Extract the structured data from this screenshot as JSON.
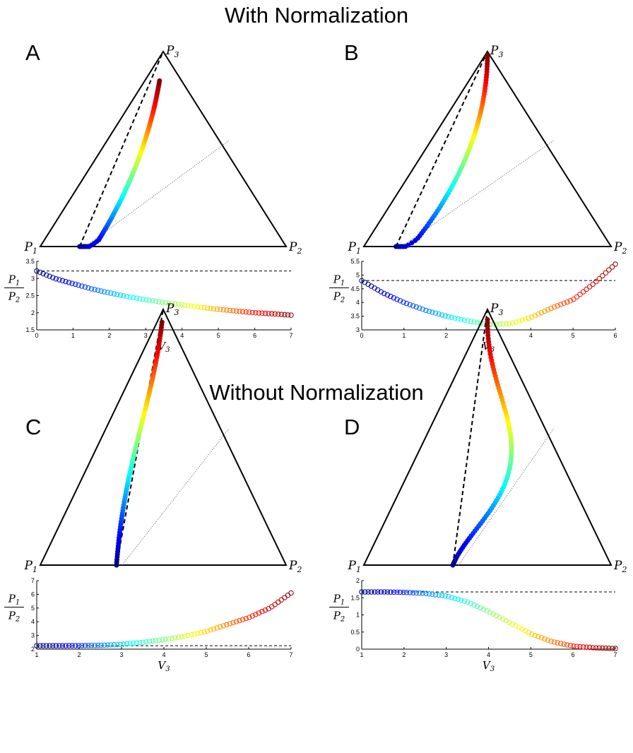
{
  "sections": {
    "top_title": "With Normalization",
    "bottom_title": "Without Normalization"
  },
  "vertex_labels": {
    "p1": "P",
    "p1_sub": "1",
    "p2": "P",
    "p2_sub": "2",
    "p3": "P",
    "p3_sub": "3"
  },
  "colors": {
    "colormap": "jet",
    "triangle": "#000000",
    "dashed": "#000000",
    "dotted": "#555555"
  },
  "chart_data": [
    {
      "panel": "A",
      "type": "scatter",
      "kind": "ternary-trajectory",
      "vertices": [
        "P1",
        "P2",
        "P3"
      ],
      "trajectory": {
        "start_bary": [
          0.84,
          0.16,
          0.0
        ],
        "end_bary": [
          0.09,
          0.06,
          0.85
        ],
        "curve_shape": "hooks along base then rises toward P3",
        "points": 90
      }
    },
    {
      "panel": "A",
      "type": "scatter",
      "ylabel": "P1/P2",
      "xlabel": "V3",
      "xlim": [
        0,
        7
      ],
      "ylim": [
        1.5,
        3.5
      ],
      "xticks": [
        "0",
        "1",
        "2",
        "3",
        "4",
        "5",
        "6",
        "7"
      ],
      "yticks": [
        "1.5",
        "2",
        "2.5",
        "3",
        "3.5"
      ],
      "reference_line_y": 3.22,
      "x": [
        0,
        0.5,
        1,
        1.5,
        2,
        2.5,
        3,
        3.5,
        4,
        4.5,
        5,
        5.5,
        6,
        6.5,
        7
      ],
      "y": [
        3.22,
        3.0,
        2.85,
        2.7,
        2.58,
        2.47,
        2.38,
        2.3,
        2.23,
        2.16,
        2.1,
        2.05,
        2.0,
        1.97,
        1.93
      ]
    },
    {
      "panel": "B",
      "type": "scatter",
      "kind": "ternary-trajectory",
      "vertices": [
        "P1",
        "P2",
        "P3"
      ],
      "trajectory": {
        "start_bary": [
          0.87,
          0.13,
          0.0
        ],
        "end_bary": [
          0.01,
          0.01,
          0.98
        ],
        "curve_shape": "hooks along base then nearly straight up to P3",
        "points": 80
      }
    },
    {
      "panel": "B",
      "type": "scatter",
      "ylabel": "P1/P2",
      "xlabel": "V3",
      "xlim": [
        0,
        6
      ],
      "ylim": [
        3,
        5.5
      ],
      "xticks": [
        "0",
        "1",
        "2",
        "3",
        "4",
        "5",
        "6"
      ],
      "yticks": [
        "3",
        "3.5",
        "4",
        "4.5",
        "5",
        "5.5"
      ],
      "reference_line_y": 4.8,
      "x": [
        0,
        0.5,
        1,
        1.5,
        2,
        2.5,
        3,
        3.5,
        4,
        4.5,
        5,
        5.5,
        6
      ],
      "y": [
        4.8,
        4.35,
        4.0,
        3.72,
        3.5,
        3.33,
        3.2,
        3.22,
        3.45,
        3.8,
        4.1,
        4.7,
        5.4
      ]
    },
    {
      "panel": "C",
      "type": "scatter",
      "kind": "ternary-trajectory",
      "vertices": [
        "P1",
        "P2",
        "P3"
      ],
      "trajectory": {
        "start_bary": [
          0.69,
          0.31,
          0.0
        ],
        "end_bary": [
          0.03,
          0.02,
          0.95
        ],
        "curve_shape": "rises steeply from base, slight bulge left of dashed chord",
        "points": 90
      }
    },
    {
      "panel": "C",
      "type": "scatter",
      "ylabel": "P1/P2",
      "xlabel": "V3",
      "xlim": [
        1,
        7
      ],
      "ylim": [
        2,
        7
      ],
      "xticks": [
        "1",
        "2",
        "3",
        "4",
        "5",
        "6",
        "7"
      ],
      "yticks": [
        "2",
        "3",
        "4",
        "5",
        "6",
        "7"
      ],
      "reference_line_y": 2.25,
      "x": [
        1,
        1.5,
        2,
        2.5,
        3,
        3.5,
        4,
        4.5,
        5,
        5.5,
        6,
        6.5,
        7
      ],
      "y": [
        2.25,
        2.25,
        2.26,
        2.28,
        2.35,
        2.5,
        2.7,
        2.95,
        3.3,
        3.8,
        4.3,
        5.0,
        6.1
      ]
    },
    {
      "panel": "D",
      "type": "scatter",
      "kind": "ternary-trajectory",
      "vertices": [
        "P1",
        "P2",
        "P3"
      ],
      "trajectory": {
        "start_bary": [
          0.64,
          0.36,
          0.0
        ],
        "end_bary": [
          0.02,
          0.02,
          0.96
        ],
        "curve_shape": "rises toward P2 side and bulges right before reaching P3",
        "points": 90
      }
    },
    {
      "panel": "D",
      "type": "scatter",
      "ylabel": "P1/P2",
      "xlabel": "V3",
      "xlim": [
        1,
        7
      ],
      "ylim": [
        0,
        2
      ],
      "xticks": [
        "1",
        "2",
        "3",
        "4",
        "5",
        "6",
        "7"
      ],
      "yticks": [
        "0",
        "0.5",
        "1",
        "1.5",
        "2"
      ],
      "reference_line_y": 1.67,
      "x": [
        1,
        1.5,
        2,
        2.5,
        3,
        3.5,
        4,
        4.5,
        5,
        5.5,
        6,
        6.5,
        7
      ],
      "y": [
        1.67,
        1.67,
        1.66,
        1.63,
        1.55,
        1.38,
        1.1,
        0.78,
        0.45,
        0.22,
        0.09,
        0.04,
        0.02
      ]
    }
  ]
}
